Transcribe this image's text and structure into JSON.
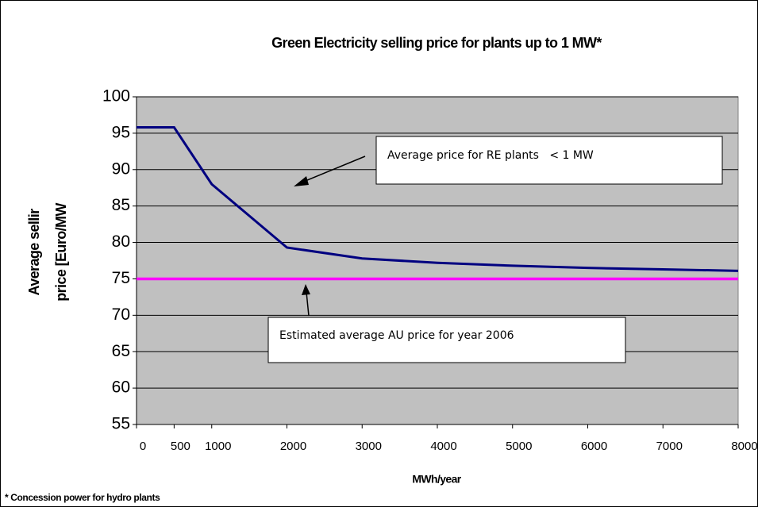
{
  "chart_data": {
    "type": "line",
    "title": "Green Electricity selling price for plants up to 1 MW*",
    "ylabel": [
      "Average sellir",
      "price [Euro/MW"
    ],
    "xlabel": "MWh/year",
    "footnote": "* Concession power for hydro plants",
    "annotations": [
      "Average price for RE plants   < 1 MW",
      "Estimated average AU price for year 2006"
    ],
    "x": [
      0,
      500,
      1000,
      2000,
      3000,
      4000,
      5000,
      6000,
      7000,
      8000
    ],
    "series": [
      {
        "name": "Average price for RE plants < 1 MW",
        "color": "#000080",
        "values": [
          95.8,
          95.8,
          88,
          79.3,
          77.8,
          77.2,
          76.8,
          76.5,
          76.3,
          76.1
        ]
      },
      {
        "name": "Estimated average AU price",
        "color": "#ff00ff",
        "values": [
          75,
          75,
          75,
          75,
          75,
          75,
          75,
          75,
          75,
          75
        ]
      }
    ],
    "xlim": [
      0,
      8000
    ],
    "xticks": [
      0,
      500,
      1000,
      2000,
      3000,
      4000,
      5000,
      6000,
      7000,
      8000
    ],
    "ylim": [
      55,
      100
    ],
    "yticks": [
      55,
      60,
      65,
      70,
      75,
      80,
      85,
      90,
      95,
      100
    ],
    "grid": true,
    "plot_background": "#c0c0c0"
  }
}
